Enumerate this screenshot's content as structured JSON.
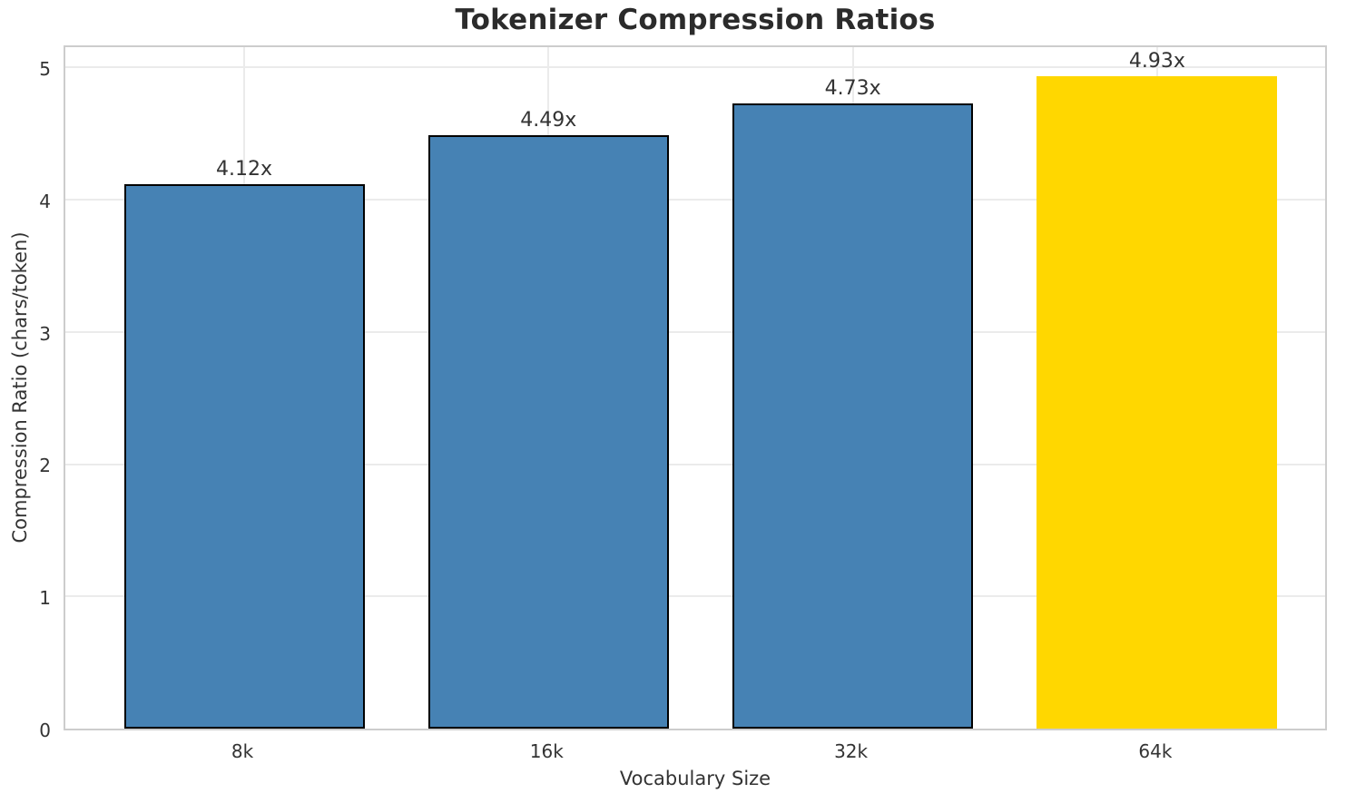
{
  "chart_data": {
    "type": "bar",
    "title": "Tokenizer Compression Ratios",
    "xlabel": "Vocabulary Size",
    "ylabel": "Compression Ratio (chars/token)",
    "categories": [
      "8k",
      "16k",
      "32k",
      "64k"
    ],
    "values": [
      4.12,
      4.49,
      4.73,
      4.93
    ],
    "value_labels": [
      "4.12x",
      "4.49x",
      "4.73x",
      "4.93x"
    ],
    "bar_colors": [
      "#4682B4",
      "#4682B4",
      "#4682B4",
      "#FFD700"
    ],
    "bar_edge_colors": [
      "#000000",
      "#000000",
      "#000000",
      "none"
    ],
    "highlighted_category": "64k",
    "yticks": [
      0,
      1,
      2,
      3,
      4,
      5
    ],
    "ylim": [
      0,
      5.18
    ],
    "grid": true,
    "grid_color": "#ebebeb",
    "spine_color": "#cdcdcd",
    "legend_position": "none"
  }
}
